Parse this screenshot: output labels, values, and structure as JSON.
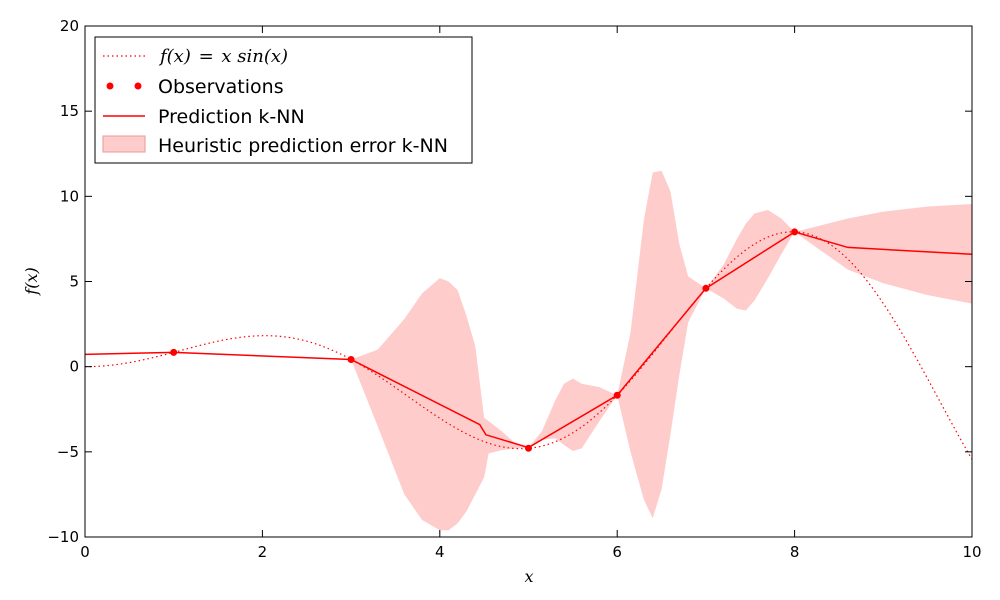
{
  "chart_data": {
    "type": "line",
    "title": "",
    "xlabel": "x",
    "ylabel": "f(x)",
    "xlim": [
      0,
      10
    ],
    "ylim": [
      -10,
      20
    ],
    "xticks": [
      0,
      2,
      4,
      6,
      8,
      10
    ],
    "yticks": [
      -10,
      -5,
      0,
      5,
      10,
      15,
      20
    ],
    "xtick_labels": [
      "0",
      "2",
      "4",
      "6",
      "8",
      "10"
    ],
    "ytick_labels": [
      "−10",
      "−5",
      "0",
      "5",
      "10",
      "15",
      "20"
    ],
    "grid": false,
    "legend_position": "top-left",
    "colors": {
      "main": "#ff0000",
      "band": "#ffcccc",
      "band_edge": "#e89a9a",
      "axes": "#000000"
    },
    "series": [
      {
        "name": "f(x) = x sin(x)",
        "style": "dotted",
        "function": "x*sin(x)",
        "x_range": [
          0,
          10
        ]
      },
      {
        "name": "Observations",
        "style": "markers",
        "x": [
          1,
          3,
          5,
          6,
          7,
          8
        ],
        "y": [
          0.84,
          0.42,
          -4.79,
          -1.68,
          4.6,
          7.91
        ]
      },
      {
        "name": "Prediction k-NN",
        "style": "solid",
        "x": [
          0,
          1,
          3,
          4.45,
          4.52,
          5,
          6,
          7,
          8,
          8.6,
          10
        ],
        "y": [
          0.72,
          0.84,
          0.42,
          -3.4,
          -4.0,
          -4.75,
          -1.68,
          4.6,
          7.91,
          7.0,
          6.6
        ]
      },
      {
        "name": "Heuristic prediction error k-NN",
        "style": "band",
        "x": [
          3,
          3.3,
          3.6,
          3.8,
          4,
          4.1,
          4.2,
          4.3,
          4.4,
          4.5,
          4.55,
          4.7,
          4.85,
          5,
          5.15,
          5.3,
          5.4,
          5.5,
          5.6,
          5.8,
          6,
          6.15,
          6.3,
          6.4,
          6.5,
          6.6,
          6.7,
          6.8,
          7,
          7.2,
          7.35,
          7.45,
          7.55,
          7.7,
          7.85,
          8,
          8.3,
          8.6,
          9,
          9.5,
          10
        ],
        "lower": [
          0.42,
          -3.5,
          -7.5,
          -9.0,
          -9.6,
          -9.6,
          -9.2,
          -8.5,
          -7.5,
          -6.5,
          -5.1,
          -4.9,
          -4.8,
          -4.75,
          -4.3,
          -4.2,
          -4.6,
          -4.95,
          -4.8,
          -3.2,
          -1.68,
          -5.0,
          -7.8,
          -8.9,
          -7.2,
          -4.0,
          -0.5,
          2.6,
          4.6,
          4.0,
          3.4,
          3.3,
          3.9,
          5.2,
          6.6,
          7.91,
          6.8,
          5.7,
          4.9,
          4.2,
          3.7
        ],
        "upper": [
          0.42,
          1.0,
          2.8,
          4.3,
          5.2,
          5.0,
          4.5,
          3.0,
          1.2,
          -3.0,
          -3.2,
          -3.8,
          -4.5,
          -4.75,
          -3.8,
          -2.0,
          -1.0,
          -0.7,
          -1.0,
          -1.2,
          -1.68,
          2.0,
          8.6,
          11.4,
          11.5,
          10.3,
          7.2,
          5.3,
          4.6,
          6.0,
          7.5,
          8.4,
          9.0,
          9.2,
          8.7,
          7.91,
          8.3,
          8.7,
          9.1,
          9.4,
          9.55
        ]
      }
    ],
    "legend": {
      "formula_lhs": "f(x)",
      "formula_eq": "=",
      "formula_rhs": "x sin(x)",
      "observations": "Observations",
      "prediction": "Prediction k-NN",
      "error": "Heuristic prediction error k-NN"
    }
  }
}
